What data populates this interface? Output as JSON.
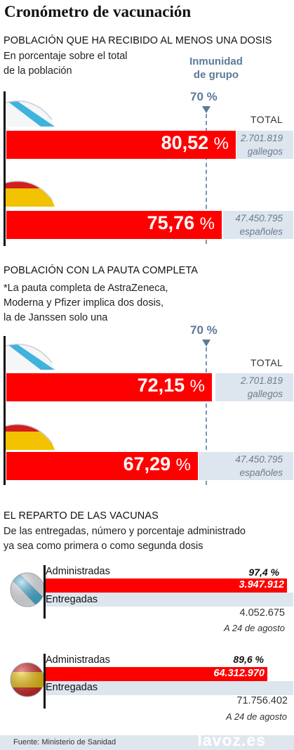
{
  "title": "Cronómetro de vacunación",
  "section1": {
    "heading": "POBLACIÓN QUE HA RECIBIDO AL MENOS UNA DOSIS",
    "note_lines": [
      "En porcentaje sobre el total",
      "de la población"
    ]
  },
  "immunity": {
    "label_lines": [
      "Inmunidad",
      "de grupo"
    ],
    "value": "70 %"
  },
  "total_label": "TOTAL",
  "section2": {
    "heading": "POBLACIÓN CON LA PAUTA COMPLETA",
    "note_lines": [
      "*La pauta completa de AstraZeneca,",
      "Moderna y Pfizer implica dos dosis,",
      "la de Janssen solo una"
    ],
    "immunity_value": "70 %"
  },
  "section3": {
    "heading": "EL REPARTO DE LAS VACUNAS",
    "note_lines": [
      "De las entregadas, número y porcentaje administrado",
      "ya sea como primera o como segunda dosis"
    ],
    "administered_label": "Administradas",
    "delivered_label": "Entregadas",
    "date_label": "A 24 de agosto"
  },
  "footer": {
    "source": "Fuente: Ministerio de Sanidad",
    "brand": "lavoz.es"
  },
  "colors": {
    "bar_red": "#ff0000",
    "track": "#dde5ee",
    "immunity_blue": "#5d7a98"
  },
  "icons": {
    "galicia": "galicia-flag-icon",
    "spain": "spain-flag-icon"
  },
  "chart_data": [
    {
      "type": "bar",
      "title": "POBLACIÓN QUE HA RECIBIDO AL MENOS UNA DOSIS",
      "categories": [
        "Galicia",
        "España"
      ],
      "values": [
        80.52,
        75.76
      ],
      "value_labels": [
        "80,52",
        "75,76"
      ],
      "unit": "%",
      "reference_line": 70,
      "totals": [
        {
          "value": "2.701.819",
          "label": "gallegos"
        },
        {
          "value": "47.450.795",
          "label": "españoles"
        }
      ],
      "ylim": [
        0,
        100
      ]
    },
    {
      "type": "bar",
      "title": "POBLACIÓN CON LA PAUTA COMPLETA",
      "categories": [
        "Galicia",
        "España"
      ],
      "values": [
        72.15,
        67.29
      ],
      "value_labels": [
        "72,15",
        "67,29"
      ],
      "unit": "%",
      "reference_line": 70,
      "totals": [
        {
          "value": "2.701.819",
          "label": "gallegos"
        },
        {
          "value": "47.450.795",
          "label": "españoles"
        }
      ],
      "ylim": [
        0,
        100
      ]
    },
    {
      "type": "bar",
      "title": "EL REPARTO DE LAS VACUNAS",
      "categories": [
        "Galicia",
        "España"
      ],
      "series": [
        {
          "name": "Administradas",
          "values": [
            3947912,
            64312970
          ],
          "labels": [
            "3.947.912",
            "64.312.970"
          ]
        },
        {
          "name": "Entregadas",
          "values": [
            4052675,
            71756402
          ],
          "labels": [
            "4.052.675",
            "71.756.402"
          ]
        }
      ],
      "percent_administered": [
        "97,4 %",
        "89,6 %"
      ],
      "percent_values": [
        97.4,
        89.6
      ]
    }
  ]
}
